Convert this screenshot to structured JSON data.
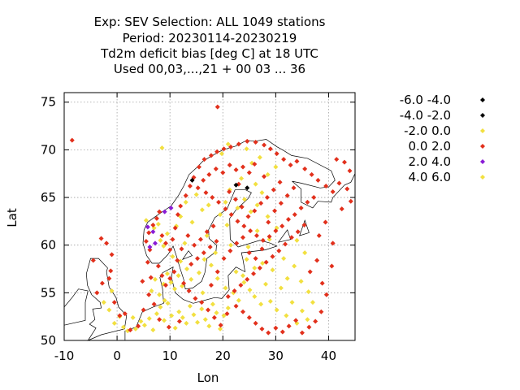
{
  "chart_data": {
    "type": "scatter",
    "title_lines": [
      "Exp: SEV   Selection: ALL   1049 stations",
      "Period: 20230114-20230219",
      "Td2m deficit bias [deg C] at  18 UTC",
      "Used  00,03,...,21  + 00 03 ... 36"
    ],
    "xlabel": "Lon",
    "ylabel": "Lat",
    "xlim": [
      -10,
      45
    ],
    "ylim": [
      50,
      76
    ],
    "xticks": [
      -10,
      0,
      10,
      20,
      30,
      40
    ],
    "yticks": [
      50,
      55,
      60,
      65,
      70,
      75
    ],
    "grid": true,
    "legend_position": "right",
    "series": [
      {
        "name": "-6.0 -4.0",
        "color": "#000000",
        "points": [
          [
            22.5,
            66.3
          ]
        ]
      },
      {
        "name": "-4.0 -2.0",
        "color": "#000000",
        "points": [
          [
            14.2,
            66.8
          ],
          [
            24.6,
            66.0
          ]
        ]
      },
      {
        "name": "-2.0 0.0",
        "color": "#f2e040",
        "points": [
          [
            -1.5,
            53.2
          ],
          [
            -0.5,
            51.8
          ],
          [
            0.5,
            52.5
          ],
          [
            1.2,
            51.4
          ],
          [
            2.0,
            51.0
          ],
          [
            3.5,
            51.2
          ],
          [
            4.5,
            52.0
          ],
          [
            5.2,
            51.6
          ],
          [
            6.1,
            52.3
          ],
          [
            6.8,
            51.1
          ],
          [
            7.5,
            52.8
          ],
          [
            8.2,
            53.5
          ],
          [
            8.9,
            52.1
          ],
          [
            9.6,
            53.9
          ],
          [
            10.3,
            52.6
          ],
          [
            11.0,
            51.3
          ],
          [
            11.7,
            53.0
          ],
          [
            12.4,
            52.4
          ],
          [
            13.1,
            51.8
          ],
          [
            13.8,
            53.6
          ],
          [
            6.5,
            55.2
          ],
          [
            7.2,
            56.4
          ],
          [
            8.0,
            54.8
          ],
          [
            8.8,
            55.9
          ],
          [
            9.5,
            57.0
          ],
          [
            10.2,
            56.1
          ],
          [
            10.9,
            55.4
          ],
          [
            11.6,
            56.8
          ],
          [
            12.3,
            55.7
          ],
          [
            9.0,
            54.2
          ],
          [
            14.5,
            52.7
          ],
          [
            15.2,
            51.9
          ],
          [
            16.0,
            53.3
          ],
          [
            16.7,
            52.2
          ],
          [
            17.4,
            51.5
          ],
          [
            18.1,
            53.8
          ],
          [
            18.8,
            52.9
          ],
          [
            19.5,
            51.2
          ],
          [
            20.2,
            52.6
          ],
          [
            21.0,
            53.4
          ],
          [
            22.0,
            55.0
          ],
          [
            23.0,
            54.2
          ],
          [
            24.0,
            56.1
          ],
          [
            25.1,
            55.3
          ],
          [
            26.0,
            54.6
          ],
          [
            27.2,
            53.8
          ],
          [
            28.1,
            55.9
          ],
          [
            29.0,
            54.1
          ],
          [
            30.2,
            53.2
          ],
          [
            31.0,
            55.5
          ],
          [
            32.0,
            52.6
          ],
          [
            33.1,
            54.0
          ],
          [
            34.0,
            51.8
          ],
          [
            35.0,
            53.1
          ],
          [
            36.0,
            52.2
          ],
          [
            24.5,
            58.5
          ],
          [
            26.0,
            57.6
          ],
          [
            27.5,
            58.1
          ],
          [
            22.5,
            57.2
          ],
          [
            23.8,
            56.8
          ],
          [
            20.5,
            64.5
          ],
          [
            21.3,
            65.8
          ],
          [
            22.8,
            63.9
          ],
          [
            24.1,
            64.8
          ],
          [
            25.3,
            63.5
          ],
          [
            26.5,
            64.2
          ],
          [
            27.4,
            65.5
          ],
          [
            28.5,
            63.0
          ],
          [
            19.5,
            63.2
          ],
          [
            20.8,
            62.1
          ],
          [
            12.0,
            63.0
          ],
          [
            13.0,
            64.5
          ],
          [
            14.2,
            62.4
          ],
          [
            15.0,
            65.3
          ],
          [
            16.1,
            63.7
          ],
          [
            17.3,
            64.2
          ],
          [
            11.2,
            62.0
          ],
          [
            9.5,
            61.2
          ],
          [
            8.2,
            60.5
          ],
          [
            7.0,
            61.8
          ],
          [
            16.5,
            58.5
          ],
          [
            17.8,
            57.9
          ],
          [
            18.6,
            59.2
          ],
          [
            15.5,
            57.1
          ],
          [
            14.0,
            56.4
          ],
          [
            13.2,
            57.5
          ],
          [
            12.0,
            58.3
          ],
          [
            26.5,
            61.5
          ],
          [
            28.8,
            60.6
          ],
          [
            30.2,
            61.8
          ],
          [
            31.5,
            58.6
          ],
          [
            29.4,
            57.4
          ],
          [
            32.2,
            56.5
          ],
          [
            33.5,
            57.8
          ],
          [
            34.8,
            56.2
          ],
          [
            36.2,
            55.1
          ],
          [
            37.0,
            54.0
          ],
          [
            35.5,
            59.2
          ],
          [
            34.0,
            60.5
          ],
          [
            3.0,
            52.4
          ],
          [
            8.5,
            70.2
          ],
          [
            21.0,
            70.6
          ],
          [
            24.5,
            70.1
          ],
          [
            27.0,
            69.2
          ],
          [
            25.5,
            68.6
          ],
          [
            19.8,
            69.6
          ],
          [
            30.0,
            68.2
          ],
          [
            28.5,
            67.4
          ],
          [
            23.5,
            67.0
          ],
          [
            26.2,
            66.4
          ],
          [
            -2.5,
            54.0
          ],
          [
            -1.0,
            55.2
          ],
          [
            10.5,
            58.8
          ],
          [
            12.8,
            60.2
          ],
          [
            17.0,
            61.0
          ],
          [
            21.5,
            60.0
          ],
          [
            24.8,
            59.8
          ],
          [
            19.0,
            56.5
          ],
          [
            20.5,
            55.5
          ],
          [
            16.2,
            55.0
          ]
        ]
      },
      {
        "name": "0.0 2.0",
        "color": "#e2301c",
        "points": [
          [
            -8.5,
            71.0
          ],
          [
            19.0,
            74.5
          ],
          [
            -3.0,
            60.7
          ],
          [
            -2.0,
            60.2
          ],
          [
            -1.0,
            59.0
          ],
          [
            -4.5,
            58.4
          ],
          [
            0.5,
            52.6
          ],
          [
            -0.5,
            54.0
          ],
          [
            1.5,
            52.8
          ],
          [
            2.5,
            51.1
          ],
          [
            4.0,
            51.5
          ],
          [
            5.0,
            53.2
          ],
          [
            6.0,
            54.8
          ],
          [
            5.8,
            58.2
          ],
          [
            6.2,
            59.5
          ],
          [
            5.5,
            60.4
          ],
          [
            6.0,
            61.3
          ],
          [
            6.8,
            62.1
          ],
          [
            7.5,
            62.8
          ],
          [
            8.0,
            63.5
          ],
          [
            8.5,
            61.0
          ],
          [
            9.2,
            60.2
          ],
          [
            10.0,
            59.5
          ],
          [
            10.5,
            60.6
          ],
          [
            11.0,
            61.8
          ],
          [
            11.5,
            63.2
          ],
          [
            12.0,
            64.1
          ],
          [
            13.0,
            65.2
          ],
          [
            13.8,
            66.2
          ],
          [
            14.5,
            67.1
          ],
          [
            15.5,
            68.2
          ],
          [
            16.5,
            69.0
          ],
          [
            17.8,
            69.4
          ],
          [
            18.9,
            69.8
          ],
          [
            20.2,
            70.1
          ],
          [
            21.5,
            70.3
          ],
          [
            23.0,
            70.6
          ],
          [
            24.6,
            70.9
          ],
          [
            26.2,
            70.8
          ],
          [
            27.8,
            70.5
          ],
          [
            29.0,
            70.1
          ],
          [
            30.2,
            69.6
          ],
          [
            31.5,
            69.0
          ],
          [
            32.8,
            68.4
          ],
          [
            34.0,
            68.8
          ],
          [
            35.5,
            68.0
          ],
          [
            36.8,
            67.4
          ],
          [
            38.0,
            66.8
          ],
          [
            39.5,
            66.2
          ],
          [
            40.8,
            65.6
          ],
          [
            42.0,
            66.5
          ],
          [
            43.5,
            65.9
          ],
          [
            44.0,
            67.8
          ],
          [
            43.0,
            68.7
          ],
          [
            41.5,
            69.0
          ],
          [
            26.0,
            68.5
          ],
          [
            25.0,
            67.6
          ],
          [
            23.8,
            68.2
          ],
          [
            22.5,
            67.9
          ],
          [
            21.3,
            68.4
          ],
          [
            20.0,
            67.6
          ],
          [
            18.7,
            68.0
          ],
          [
            17.4,
            67.4
          ],
          [
            16.3,
            66.8
          ],
          [
            15.3,
            66.0
          ],
          [
            16.8,
            65.5
          ],
          [
            18.0,
            65.0
          ],
          [
            19.2,
            64.5
          ],
          [
            20.5,
            63.8
          ],
          [
            21.6,
            63.2
          ],
          [
            22.8,
            62.5
          ],
          [
            24.0,
            62.0
          ],
          [
            25.2,
            61.5
          ],
          [
            26.4,
            61.0
          ],
          [
            27.6,
            60.5
          ],
          [
            28.8,
            60.9
          ],
          [
            30.0,
            61.5
          ],
          [
            31.2,
            62.0
          ],
          [
            32.4,
            62.7
          ],
          [
            33.6,
            63.2
          ],
          [
            34.8,
            63.9
          ],
          [
            36.0,
            64.5
          ],
          [
            37.2,
            65.0
          ],
          [
            35.4,
            62.1
          ],
          [
            34.2,
            61.4
          ],
          [
            33.0,
            60.8
          ],
          [
            31.8,
            60.1
          ],
          [
            30.6,
            59.4
          ],
          [
            29.4,
            58.8
          ],
          [
            28.2,
            58.2
          ],
          [
            27.0,
            57.6
          ],
          [
            25.8,
            57.0
          ],
          [
            24.6,
            56.4
          ],
          [
            23.4,
            55.8
          ],
          [
            22.2,
            55.2
          ],
          [
            21.0,
            54.6
          ],
          [
            22.5,
            53.6
          ],
          [
            23.8,
            53.0
          ],
          [
            25.0,
            52.4
          ],
          [
            26.2,
            51.8
          ],
          [
            27.4,
            51.2
          ],
          [
            28.6,
            50.8
          ],
          [
            30.0,
            51.3
          ],
          [
            31.3,
            50.9
          ],
          [
            32.5,
            51.5
          ],
          [
            33.8,
            52.1
          ],
          [
            35.0,
            50.8
          ],
          [
            36.3,
            51.4
          ],
          [
            37.5,
            52.0
          ],
          [
            38.6,
            53.0
          ],
          [
            14.0,
            58.0
          ],
          [
            15.2,
            58.6
          ],
          [
            16.4,
            59.2
          ],
          [
            17.6,
            59.8
          ],
          [
            18.8,
            60.4
          ],
          [
            14.6,
            60.0
          ],
          [
            15.8,
            60.6
          ],
          [
            17.0,
            61.4
          ],
          [
            18.2,
            62.0
          ],
          [
            13.4,
            61.0
          ],
          [
            12.2,
            59.6
          ],
          [
            11.4,
            58.4
          ],
          [
            10.8,
            57.2
          ],
          [
            10.0,
            56.5
          ],
          [
            9.2,
            55.8
          ],
          [
            8.5,
            56.8
          ],
          [
            7.8,
            57.8
          ],
          [
            12.6,
            56.0
          ],
          [
            13.6,
            55.2
          ],
          [
            14.8,
            54.4
          ],
          [
            16.0,
            54.0
          ],
          [
            17.2,
            53.2
          ],
          [
            18.4,
            52.4
          ],
          [
            19.6,
            51.6
          ],
          [
            20.8,
            52.8
          ],
          [
            17.8,
            55.8
          ],
          [
            19.0,
            57.2
          ],
          [
            20.2,
            58.6
          ],
          [
            21.4,
            59.4
          ],
          [
            22.6,
            60.2
          ],
          [
            23.8,
            60.8
          ],
          [
            25.0,
            59.2
          ],
          [
            26.2,
            58.6
          ],
          [
            27.4,
            59.6
          ],
          [
            28.6,
            62.4
          ],
          [
            29.8,
            63.6
          ],
          [
            31.0,
            64.4
          ],
          [
            32.2,
            65.2
          ],
          [
            33.4,
            66.0
          ],
          [
            30.8,
            66.6
          ],
          [
            29.6,
            65.8
          ],
          [
            28.4,
            65.0
          ],
          [
            27.2,
            64.4
          ],
          [
            26.0,
            63.6
          ],
          [
            24.8,
            63.0
          ],
          [
            23.6,
            64.0
          ],
          [
            22.4,
            64.8
          ],
          [
            21.2,
            65.6
          ],
          [
            23.0,
            66.4
          ],
          [
            27.8,
            67.2
          ],
          [
            -1.5,
            56.5
          ],
          [
            -2.8,
            56.0
          ],
          [
            -3.8,
            55.0
          ],
          [
            -1.2,
            57.3
          ],
          [
            4.8,
            56.2
          ],
          [
            6.4,
            56.6
          ],
          [
            7.0,
            53.8
          ],
          [
            8.0,
            52.2
          ],
          [
            9.8,
            51.4
          ],
          [
            11.8,
            52.0
          ],
          [
            36.5,
            57.2
          ],
          [
            37.8,
            58.4
          ],
          [
            38.8,
            56.0
          ],
          [
            39.6,
            54.8
          ],
          [
            40.6,
            57.8
          ],
          [
            38.2,
            61.0
          ],
          [
            39.4,
            62.4
          ],
          [
            40.8,
            60.2
          ],
          [
            42.5,
            63.8
          ],
          [
            44.2,
            64.6
          ]
        ]
      },
      {
        "name": "2.0 4.0",
        "color": "#8a1cd6",
        "points": [
          [
            5.8,
            61.9
          ],
          [
            6.8,
            61.4
          ],
          [
            7.2,
            60.2
          ],
          [
            9.0,
            63.5
          ],
          [
            10.2,
            63.9
          ],
          [
            6.2,
            59.8
          ]
        ]
      },
      {
        "name": "4.0 6.0",
        "color": "#f2e040",
        "points": [
          [
            7.8,
            62.2
          ],
          [
            5.5,
            62.6
          ],
          [
            8.8,
            59.9
          ]
        ]
      }
    ]
  }
}
